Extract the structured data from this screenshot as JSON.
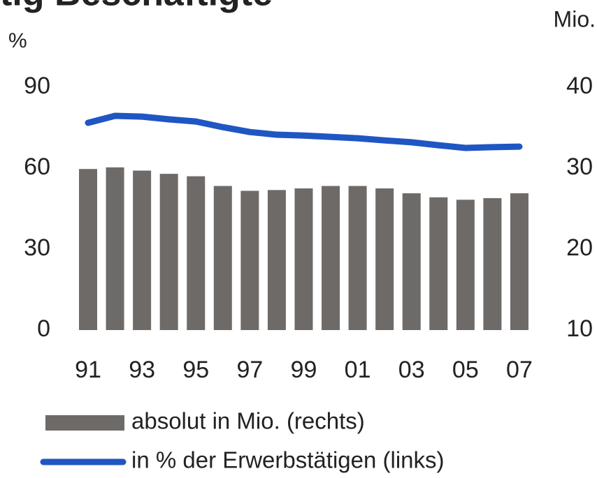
{
  "chart_data": {
    "type": "bar-line",
    "title": "tig Beschäftigte",
    "ylabel": "%",
    "y2label": "Mio.",
    "categories": [
      "91",
      null,
      "93",
      null,
      "95",
      null,
      "97",
      null,
      "99",
      null,
      "01",
      null,
      "03",
      null,
      "05",
      null,
      "07"
    ],
    "ylim": [
      0,
      90
    ],
    "yticks": [
      0,
      30,
      60,
      90
    ],
    "y2lim": [
      10,
      40
    ],
    "y2ticks": [
      10,
      20,
      30,
      40
    ],
    "series": [
      {
        "name": "absolut in Mio. (rechts)",
        "type": "bar",
        "axis": "y2",
        "color": "#6e6a68",
        "values": [
          29.9,
          30.1,
          29.7,
          29.3,
          29.0,
          27.8,
          27.2,
          27.3,
          27.5,
          27.8,
          27.8,
          27.5,
          26.9,
          26.4,
          26.1,
          26.3,
          26.9
        ]
      },
      {
        "name": "in % der Erwerbstätigen (links)",
        "type": "line",
        "color": "#1f56c3",
        "values": [
          76.8,
          79.4,
          79.1,
          78.1,
          77.3,
          75.2,
          73.4,
          72.4,
          72.1,
          71.6,
          71.1,
          70.3,
          69.6,
          68.5,
          67.5,
          67.8,
          68.0
        ]
      }
    ]
  }
}
